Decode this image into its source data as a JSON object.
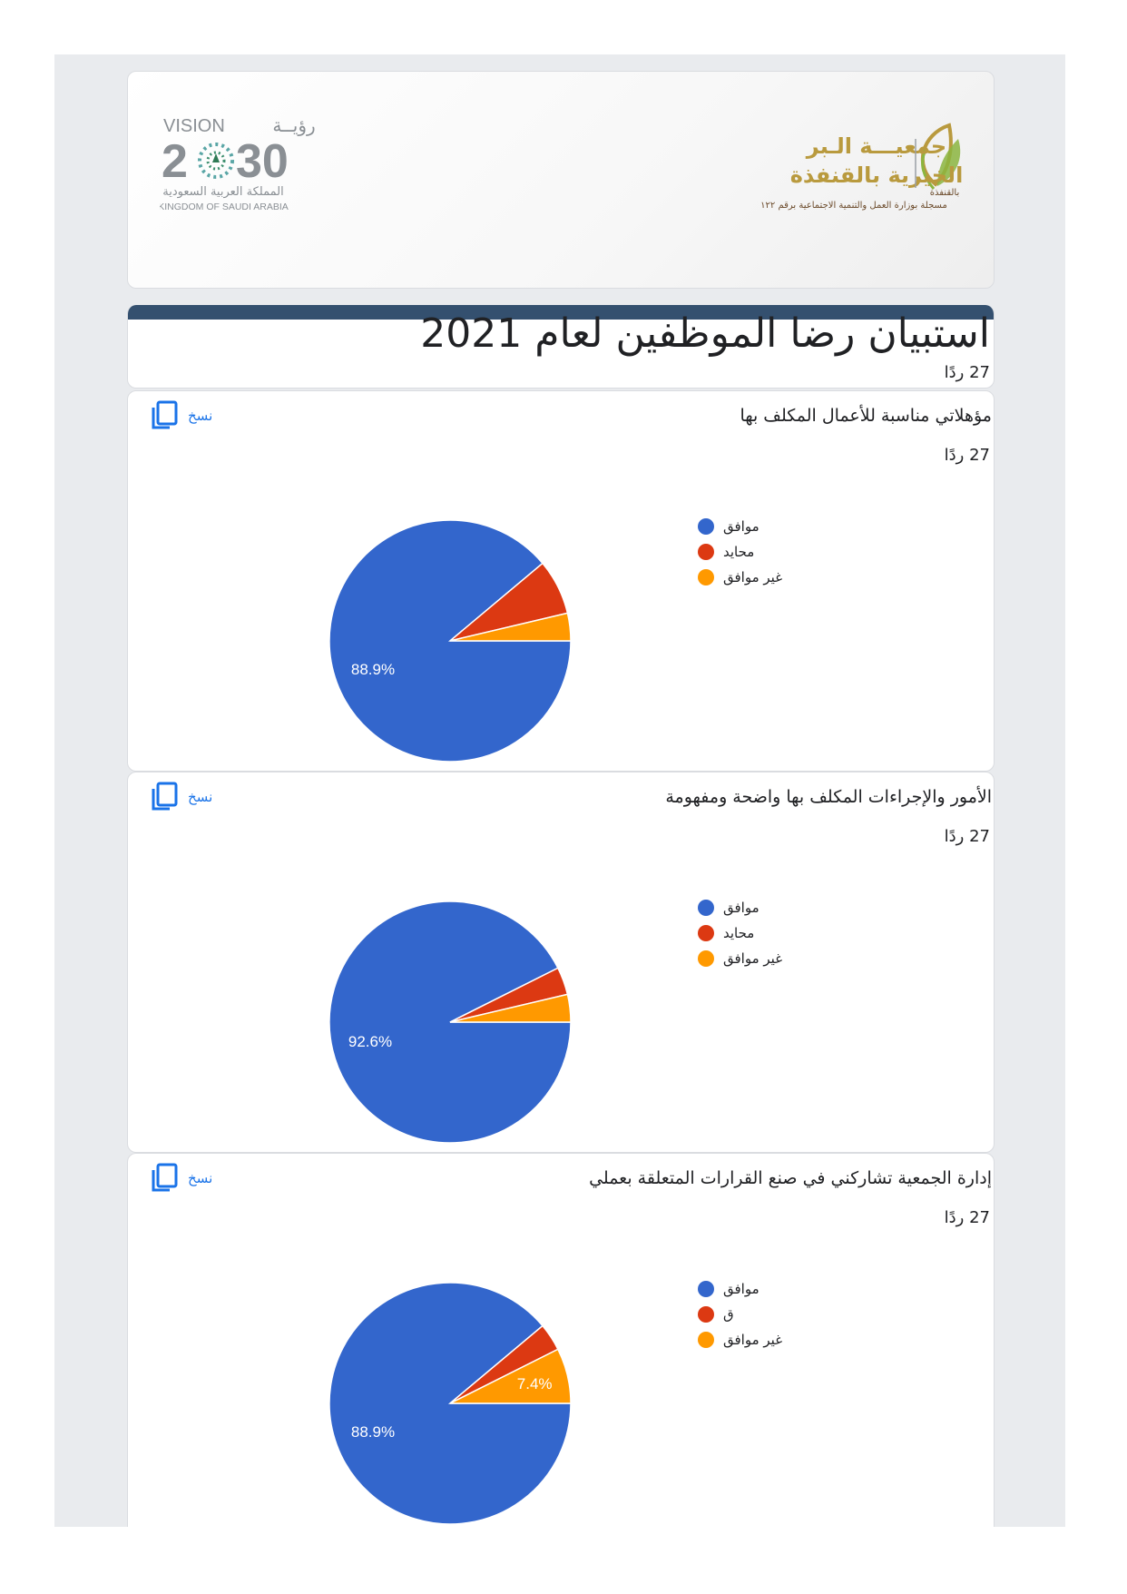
{
  "header": {
    "vision_logo": {
      "ar_word": "رؤيــة",
      "en_word": "VISION",
      "year_left": "2",
      "year_right": "30",
      "ar_country": "المملكة العربية السعودية",
      "en_country": "KINGDOM OF SAUDI ARABIA"
    },
    "org_logo": {
      "line1": "جمعيـــة الـبر",
      "line2": "الخيرية بالقنفذة",
      "small": "بالقنفذة",
      "registration": "مسجلة بوزارة العمل والتنمية الاجتماعية برقم ١٢٢"
    }
  },
  "form": {
    "title": "استبيان رضا الموظفين لعام 2021",
    "responses": "27 ردًا"
  },
  "colors": {
    "agree": "#3366cc",
    "neutral": "#dc3912",
    "disagree": "#ff9900",
    "accent_bar": "#34506f",
    "link": "#1a73e8"
  },
  "copy_label": "نسخ",
  "chart_data": [
    {
      "type": "pie",
      "title": "مؤهلاتي مناسبة للأعمال المكلف بها",
      "responses": "27 ردًا",
      "categories": [
        "موافق",
        "محايد",
        "غير موافق"
      ],
      "values": [
        88.9,
        7.4,
        3.7
      ],
      "labels": [
        "88.9%",
        "",
        ""
      ],
      "legend": "right"
    },
    {
      "type": "pie",
      "title": "الأمور والإجراءات المكلف بها واضحة ومفهومة",
      "responses": "27 ردًا",
      "categories": [
        "موافق",
        "محايد",
        "غير موافق"
      ],
      "values": [
        92.6,
        3.7,
        3.7
      ],
      "labels": [
        "92.6%",
        "",
        ""
      ],
      "legend": "right"
    },
    {
      "type": "pie",
      "title": "إدارة الجمعية تشاركني في صنع القرارات المتعلقة بعملي",
      "responses": "27 ردًا",
      "categories": [
        "موافق",
        "ق",
        "غير موافق"
      ],
      "values": [
        88.9,
        3.7,
        7.4
      ],
      "labels": [
        "88.9%",
        "",
        "7.4%"
      ],
      "legend": "right"
    }
  ]
}
